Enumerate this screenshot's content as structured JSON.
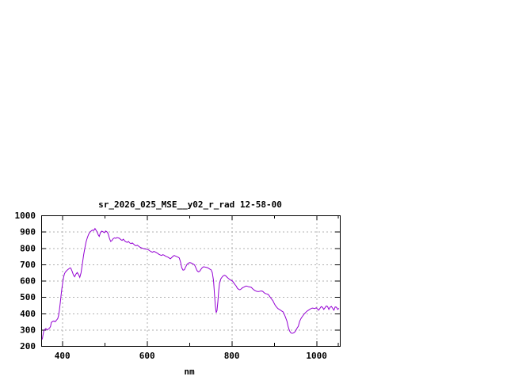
{
  "title": "sr_2026_025_MSE__y02_r_rad 12-58-00",
  "colors": {
    "line": "#9400d3",
    "grid": "#b0b0b0",
    "border": "#000000",
    "background": "#ffffff",
    "text": "#000000"
  },
  "chart_data": {
    "type": "line",
    "title": "sr_2026_025_MSE__y02_r_rad 12-58-00",
    "xlabel": "nm",
    "ylabel": "",
    "xlim": [
      350,
      1055
    ],
    "ylim": [
      200,
      1000
    ],
    "x_major_ticks": [
      400,
      600,
      800,
      1000
    ],
    "x_minor_ticks": [
      500,
      700,
      900,
      1050
    ],
    "y_ticks": [
      200,
      300,
      400,
      500,
      600,
      700,
      800,
      900,
      1000
    ],
    "grid": true,
    "legend": "none",
    "series": [
      {
        "color": "#9400d3",
        "points": [
          [
            352,
            240
          ],
          [
            353,
            248
          ],
          [
            354,
            262
          ],
          [
            355,
            278
          ],
          [
            356,
            290
          ],
          [
            358,
            300
          ],
          [
            361,
            306
          ],
          [
            364,
            298
          ],
          [
            367,
            304
          ],
          [
            370,
            310
          ],
          [
            372,
            320
          ],
          [
            374,
            344
          ],
          [
            377,
            350
          ],
          [
            380,
            352
          ],
          [
            383,
            348
          ],
          [
            386,
            358
          ],
          [
            389,
            368
          ],
          [
            391,
            385
          ],
          [
            393,
            420
          ],
          [
            395,
            465
          ],
          [
            397,
            510
          ],
          [
            399,
            555
          ],
          [
            401,
            592
          ],
          [
            403,
            622
          ],
          [
            405,
            642
          ],
          [
            407,
            652
          ],
          [
            409,
            658
          ],
          [
            412,
            666
          ],
          [
            415,
            672
          ],
          [
            418,
            678
          ],
          [
            420,
            676
          ],
          [
            423,
            658
          ],
          [
            426,
            636
          ],
          [
            429,
            624
          ],
          [
            432,
            640
          ],
          [
            435,
            650
          ],
          [
            438,
            638
          ],
          [
            441,
            620
          ],
          [
            444,
            648
          ],
          [
            447,
            700
          ],
          [
            450,
            755
          ],
          [
            453,
            800
          ],
          [
            456,
            838
          ],
          [
            459,
            864
          ],
          [
            462,
            884
          ],
          [
            465,
            896
          ],
          [
            468,
            904
          ],
          [
            471,
            910
          ],
          [
            474,
            907
          ],
          [
            477,
            919
          ],
          [
            479,
            911
          ],
          [
            482,
            897
          ],
          [
            485,
            879
          ],
          [
            487,
            871
          ],
          [
            490,
            896
          ],
          [
            493,
            903
          ],
          [
            496,
            899
          ],
          [
            499,
            894
          ],
          [
            502,
            904
          ],
          [
            505,
            899
          ],
          [
            508,
            888
          ],
          [
            511,
            860
          ],
          [
            514,
            840
          ],
          [
            517,
            846
          ],
          [
            520,
            857
          ],
          [
            523,
            862
          ],
          [
            526,
            859
          ],
          [
            529,
            864
          ],
          [
            532,
            862
          ],
          [
            535,
            859
          ],
          [
            538,
            851
          ],
          [
            541,
            847
          ],
          [
            544,
            854
          ],
          [
            547,
            844
          ],
          [
            550,
            838
          ],
          [
            553,
            834
          ],
          [
            556,
            840
          ],
          [
            559,
            831
          ],
          [
            562,
            827
          ],
          [
            565,
            831
          ],
          [
            568,
            824
          ],
          [
            571,
            817
          ],
          [
            574,
            814
          ],
          [
            577,
            817
          ],
          [
            580,
            811
          ],
          [
            583,
            805
          ],
          [
            586,
            801
          ],
          [
            589,
            799
          ],
          [
            592,
            796
          ],
          [
            595,
            794
          ],
          [
            598,
            793
          ],
          [
            601,
            791
          ],
          [
            604,
            787
          ],
          [
            607,
            782
          ],
          [
            610,
            777
          ],
          [
            613,
            774
          ],
          [
            616,
            779
          ],
          [
            619,
            776
          ],
          [
            622,
            771
          ],
          [
            625,
            767
          ],
          [
            628,
            761
          ],
          [
            631,
            757
          ],
          [
            634,
            754
          ],
          [
            637,
            759
          ],
          [
            640,
            756
          ],
          [
            643,
            751
          ],
          [
            646,
            747
          ],
          [
            649,
            744
          ],
          [
            652,
            739
          ],
          [
            655,
            734
          ],
          [
            658,
            741
          ],
          [
            661,
            749
          ],
          [
            664,
            754
          ],
          [
            667,
            751
          ],
          [
            670,
            747
          ],
          [
            673,
            744
          ],
          [
            676,
            739
          ],
          [
            679,
            714
          ],
          [
            682,
            678
          ],
          [
            685,
            664
          ],
          [
            688,
            667
          ],
          [
            691,
            684
          ],
          [
            694,
            699
          ],
          [
            697,
            706
          ],
          [
            700,
            710
          ],
          [
            703,
            709
          ],
          [
            706,
            706
          ],
          [
            709,
            702
          ],
          [
            712,
            696
          ],
          [
            715,
            679
          ],
          [
            718,
            661
          ],
          [
            721,
            654
          ],
          [
            724,
            657
          ],
          [
            727,
            669
          ],
          [
            730,
            679
          ],
          [
            733,
            685
          ],
          [
            736,
            684
          ],
          [
            739,
            682
          ],
          [
            742,
            680
          ],
          [
            745,
            676
          ],
          [
            748,
            671
          ],
          [
            751,
            667
          ],
          [
            754,
            649
          ],
          [
            757,
            598
          ],
          [
            759,
            520
          ],
          [
            761,
            448
          ],
          [
            763,
            404
          ],
          [
            765,
            416
          ],
          [
            767,
            470
          ],
          [
            769,
            540
          ],
          [
            771,
            584
          ],
          [
            774,
            610
          ],
          [
            777,
            622
          ],
          [
            780,
            630
          ],
          [
            783,
            633
          ],
          [
            786,
            628
          ],
          [
            789,
            620
          ],
          [
            792,
            613
          ],
          [
            795,
            607
          ],
          [
            798,
            602
          ],
          [
            801,
            599
          ],
          [
            804,
            589
          ],
          [
            807,
            577
          ],
          [
            810,
            568
          ],
          [
            813,
            554
          ],
          [
            816,
            547
          ],
          [
            819,
            544
          ],
          [
            822,
            549
          ],
          [
            825,
            556
          ],
          [
            828,
            560
          ],
          [
            831,
            564
          ],
          [
            834,
            567
          ],
          [
            837,
            565
          ],
          [
            840,
            562
          ],
          [
            843,
            561
          ],
          [
            846,
            559
          ],
          [
            849,
            551
          ],
          [
            852,
            544
          ],
          [
            855,
            539
          ],
          [
            858,
            535
          ],
          [
            861,
            533
          ],
          [
            864,
            533
          ],
          [
            867,
            536
          ],
          [
            870,
            537
          ],
          [
            873,
            534
          ],
          [
            876,
            527
          ],
          [
            879,
            521
          ],
          [
            882,
            519
          ],
          [
            885,
            517
          ],
          [
            888,
            509
          ],
          [
            891,
            497
          ],
          [
            894,
            487
          ],
          [
            897,
            477
          ],
          [
            900,
            461
          ],
          [
            903,
            447
          ],
          [
            906,
            437
          ],
          [
            909,
            429
          ],
          [
            912,
            424
          ],
          [
            915,
            419
          ],
          [
            918,
            414
          ],
          [
            921,
            409
          ],
          [
            924,
            394
          ],
          [
            927,
            373
          ],
          [
            930,
            352
          ],
          [
            933,
            318
          ],
          [
            936,
            293
          ],
          [
            939,
            281
          ],
          [
            942,
            277
          ],
          [
            945,
            279
          ],
          [
            948,
            284
          ],
          [
            951,
            294
          ],
          [
            954,
            309
          ],
          [
            957,
            321
          ],
          [
            960,
            350
          ],
          [
            963,
            367
          ],
          [
            966,
            379
          ],
          [
            969,
            389
          ],
          [
            972,
            399
          ],
          [
            975,
            407
          ],
          [
            978,
            414
          ],
          [
            981,
            419
          ],
          [
            984,
            424
          ],
          [
            987,
            429
          ],
          [
            990,
            432
          ],
          [
            993,
            431
          ],
          [
            996,
            429
          ],
          [
            999,
            434
          ],
          [
            1002,
            427
          ],
          [
            1005,
            419
          ],
          [
            1008,
            431
          ],
          [
            1011,
            441
          ],
          [
            1014,
            437
          ],
          [
            1017,
            424
          ],
          [
            1020,
            434
          ],
          [
            1023,
            445
          ],
          [
            1026,
            441
          ],
          [
            1029,
            424
          ],
          [
            1032,
            437
          ],
          [
            1035,
            442
          ],
          [
            1038,
            431
          ],
          [
            1041,
            419
          ],
          [
            1044,
            439
          ],
          [
            1047,
            437
          ],
          [
            1050,
            424
          ],
          [
            1053,
            431
          ]
        ]
      }
    ]
  }
}
